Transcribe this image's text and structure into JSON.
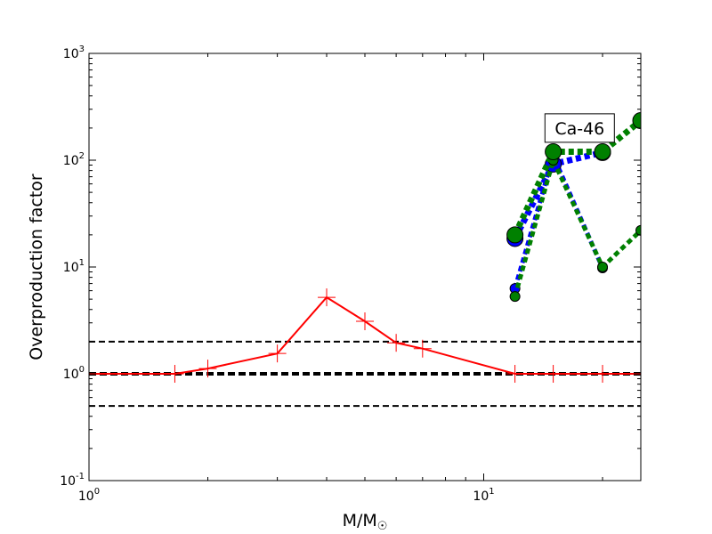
{
  "chart_data": {
    "type": "line",
    "xlabel": "M/M",
    "xlabel_subscript": "☉",
    "ylabel": "Overproduction factor",
    "xscale": "log",
    "yscale": "log",
    "xlim": [
      1,
      25
    ],
    "ylim": [
      0.1,
      1000
    ],
    "x_ticks": [
      {
        "value": 1,
        "base": "10",
        "exp": "0"
      },
      {
        "value": 10,
        "base": "10",
        "exp": "1"
      }
    ],
    "y_ticks": [
      {
        "value": 0.1,
        "base": "10",
        "exp": "-1"
      },
      {
        "value": 1,
        "base": "10",
        "exp": "0"
      },
      {
        "value": 10,
        "base": "10",
        "exp": "1"
      },
      {
        "value": 100,
        "base": "10",
        "exp": "2"
      },
      {
        "value": 1000,
        "base": "10",
        "exp": "3"
      }
    ],
    "grid": false,
    "annotation": {
      "text": "Ca-46",
      "x": 17.5,
      "y": 200
    },
    "reference_lines": [
      {
        "y": 2.0,
        "style": "dashed",
        "color": "#000000",
        "weight": "normal"
      },
      {
        "y": 1.0,
        "style": "dashed",
        "color": "#000000",
        "weight": "bold"
      },
      {
        "y": 0.5,
        "style": "dashed",
        "color": "#000000",
        "weight": "normal"
      }
    ],
    "series": [
      {
        "color": "#ff0000",
        "style": "solid",
        "marker": "plus",
        "x": [
          1,
          1.65,
          2,
          3,
          4,
          5,
          6,
          7,
          12,
          15,
          20,
          25
        ],
        "y": [
          1.0,
          1.0,
          1.12,
          1.55,
          5.2,
          3.1,
          1.95,
          1.72,
          1.0,
          1.0,
          1.0,
          1.0
        ]
      },
      {
        "color": "#0000ff",
        "style": "dotted",
        "marker": "circle-small",
        "x": [
          12,
          15,
          20
        ],
        "y": [
          6.3,
          110,
          9.8
        ]
      },
      {
        "color": "#0000ff",
        "style": "dotted",
        "marker": "circle-large",
        "x": [
          12,
          15,
          20
        ],
        "y": [
          18.5,
          92,
          118
        ]
      },
      {
        "color": "#008000",
        "style": "dotted",
        "marker": "circle-small",
        "x": [
          12,
          15,
          20,
          25
        ],
        "y": [
          5.3,
          100,
          10,
          22
        ]
      },
      {
        "color": "#008000",
        "style": "dotted",
        "marker": "circle-large",
        "x": [
          12,
          15,
          20,
          25
        ],
        "y": [
          20,
          120,
          120,
          235
        ]
      }
    ]
  }
}
